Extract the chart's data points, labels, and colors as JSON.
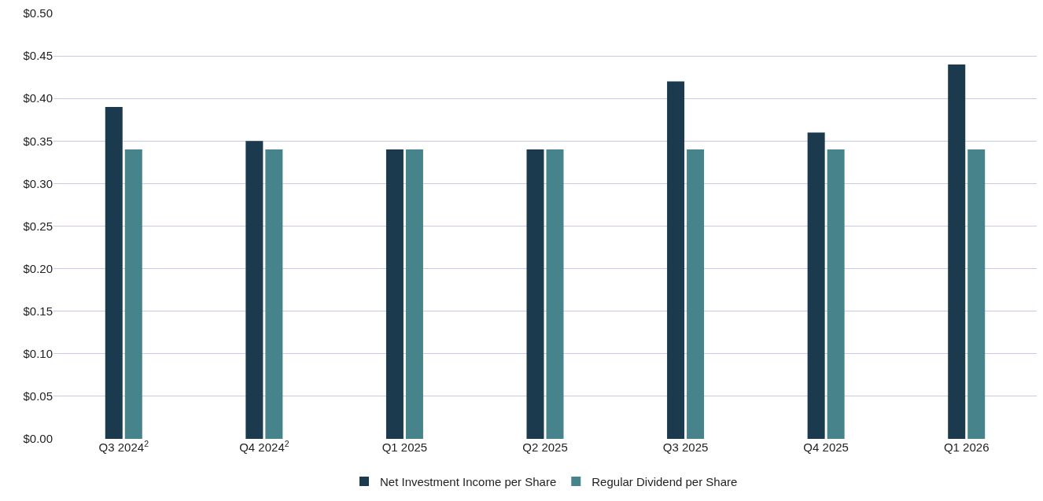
{
  "chart_data": {
    "type": "bar",
    "categories": [
      "Q3 2024$^{2}$",
      "Q4 2024$^{2}$",
      "Q1 2025",
      "Q2 2025",
      "Q3 2025",
      "Q4 2025",
      "Q1 2026"
    ],
    "series": [
      {
        "name": "Net Investment Income per Share",
        "color": "#1b3a4e",
        "values": [
          0.39,
          0.35,
          0.34,
          0.34,
          0.42,
          0.36,
          0.44
        ]
      },
      {
        "name": "Regular Dividend per Share",
        "color": "#46838b",
        "values": [
          0.34,
          0.34,
          0.34,
          0.34,
          0.34,
          0.34,
          0.34
        ]
      }
    ],
    "ylim": [
      0,
      0.5
    ],
    "yticks": [
      {
        "value": 0,
        "label": "$0.00"
      },
      {
        "value": 0.05,
        "label": "$0.05"
      },
      {
        "value": 0.1,
        "label": "$0.10"
      },
      {
        "value": 0.15,
        "label": "$0.15"
      },
      {
        "value": 0.2,
        "label": "$0.20"
      },
      {
        "value": 0.25,
        "label": "$0.25"
      },
      {
        "value": 0.3,
        "label": "$0.30"
      },
      {
        "value": 0.35,
        "label": "$0.35"
      },
      {
        "value": 0.4,
        "label": "$0.40"
      },
      {
        "value": 0.45,
        "label": "$0.45"
      },
      {
        "value": 0.5,
        "label": "$0.50"
      }
    ],
    "grid": "y",
    "legend": "bottom"
  }
}
